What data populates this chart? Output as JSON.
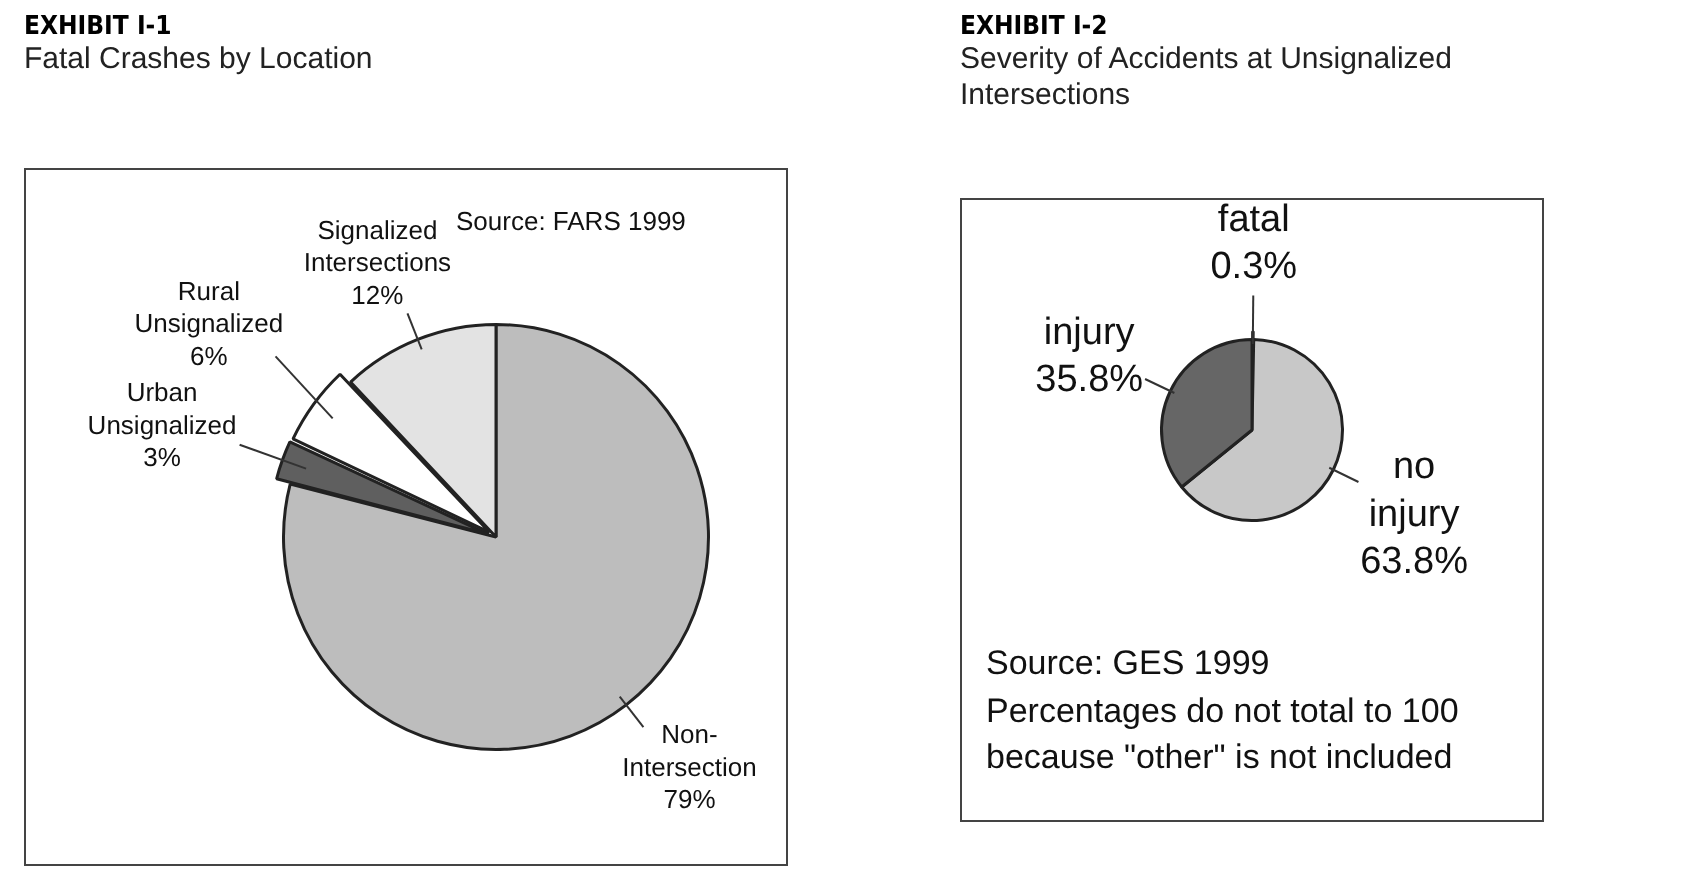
{
  "chart_data": [
    {
      "type": "pie",
      "title": "EXHIBIT I-1",
      "subtitle": "Fatal Crashes by Location",
      "categories": [
        "Non-Intersection",
        "Urban Unsignalized",
        "Rural Unsignalized",
        "Signalized Intersections"
      ],
      "values": [
        79,
        3,
        6,
        12
      ],
      "value_labels": [
        "79%",
        "3%",
        "6%",
        "12%"
      ],
      "colors": [
        "#bdbdbd",
        "#5f5f5f",
        "#ffffff",
        "#e3e3e3"
      ],
      "annotations": [
        "Source: FARS 1999"
      ],
      "legend": false
    },
    {
      "type": "pie",
      "title": "EXHIBIT I-2",
      "subtitle": "Severity of Accidents at Unsignalized Intersections",
      "categories": [
        "fatal",
        "no injury",
        "injury"
      ],
      "values": [
        0.3,
        63.8,
        35.8
      ],
      "value_labels": [
        "0.3%",
        "63.8%",
        "35.8%"
      ],
      "colors": [
        "#ffffff",
        "#c8c8c8",
        "#666666"
      ],
      "annotations": [
        "Source: GES 1999",
        "Percentages do not total to 100 because \"other\" is not included"
      ],
      "legend": false
    }
  ]
}
